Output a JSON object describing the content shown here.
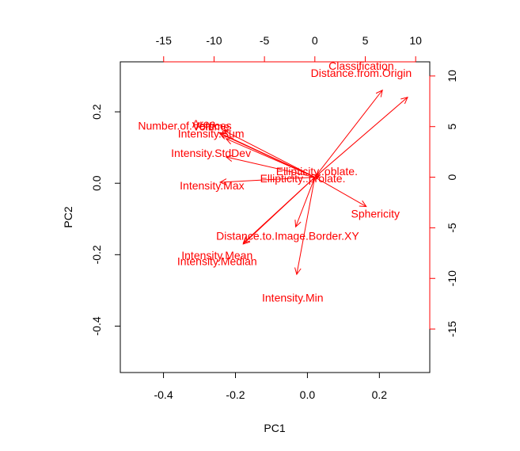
{
  "chart_data": {
    "type": "scatter",
    "subtype": "biplot",
    "title": "",
    "xlabel": "PC1",
    "ylabel": "PC2",
    "xlim": [
      -0.52,
      0.34
    ],
    "ylim": [
      -0.53,
      0.34
    ],
    "bottom_ticks": [
      "-0.4",
      "-0.2",
      "0.0",
      "0.2"
    ],
    "left_ticks": [
      "-0.4",
      "-0.2",
      "0.0",
      "0.2"
    ],
    "top_ticks": [
      "-15",
      "-10",
      "-5",
      "0",
      "5",
      "10"
    ],
    "right_ticks": [
      "-15",
      "-10",
      "-5",
      "0",
      "5",
      "10"
    ],
    "loadings_lim": [
      -19.3,
      11.4
    ],
    "grid": false,
    "colors": {
      "vectors": "#ff0000",
      "axes": "#000000",
      "secondary_axes": "#ff0000"
    },
    "variables": [
      {
        "name": "Classification",
        "x": 6.7,
        "y": 8.6
      },
      {
        "name": "Distance.from.Origin",
        "x": 9.2,
        "y": 7.9
      },
      {
        "name": "Number.of.Vertices",
        "x": -9.5,
        "y": 4.4
      },
      {
        "name": "Area",
        "x": -9.0,
        "y": 4.6
      },
      {
        "name": "Volume",
        "x": -9.4,
        "y": 4.3
      },
      {
        "name": "Intensity.Sum",
        "x": -8.8,
        "y": 3.8
      },
      {
        "name": "Intensity.StdDev",
        "x": -8.8,
        "y": 2.0
      },
      {
        "name": "Ellipticity..oblate.",
        "x": 0.5,
        "y": 0.2
      },
      {
        "name": "Ellipticity..prolate.",
        "x": 0.4,
        "y": 0.0
      },
      {
        "name": "Intensity.Max",
        "x": -9.4,
        "y": -0.5
      },
      {
        "name": "Sphericity",
        "x": 5.1,
        "y": -2.9
      },
      {
        "name": "Distance.to.Image.Border.XY",
        "x": -1.9,
        "y": -4.9
      },
      {
        "name": "Intensity.Mean",
        "x": -7.1,
        "y": -6.5
      },
      {
        "name": "Intensity.Median",
        "x": -7.1,
        "y": -6.6
      },
      {
        "name": "Intensity.Min",
        "x": -1.8,
        "y": -9.6
      }
    ],
    "labels": [
      {
        "text": "Classification",
        "x": 4.6,
        "y": 11.0
      },
      {
        "text": "Distance.from.Origin",
        "x": 4.6,
        "y": 10.3
      },
      {
        "text": "Number.of.Vertices",
        "x": -12.9,
        "y": 5.1
      },
      {
        "text": "Area",
        "x": -11.0,
        "y": 5.3
      },
      {
        "text": "Volume",
        "x": -10.3,
        "y": 5.0
      },
      {
        "text": "Intensity.Sum",
        "x": -10.3,
        "y": 4.3
      },
      {
        "text": "Intensity.StdDev",
        "x": -10.3,
        "y": 2.4
      },
      {
        "text": "Ellipticity..oblate.",
        "x": 0.2,
        "y": 0.6
      },
      {
        "text": "Ellipticity..prolate.",
        "x": -1.2,
        "y": -0.1
      },
      {
        "text": "Intensity.Max",
        "x": -10.2,
        "y": -0.8
      },
      {
        "text": "Sphericity",
        "x": 6.0,
        "y": -3.6
      },
      {
        "text": "Distance.to.Image.Border.XY",
        "x": -2.7,
        "y": -5.8
      },
      {
        "text": "Intensity.Mean",
        "x": -9.7,
        "y": -7.7
      },
      {
        "text": "Intensity.Median",
        "x": -9.7,
        "y": -8.3
      },
      {
        "text": "Intensity.Min",
        "x": -2.2,
        "y": -11.9
      }
    ]
  }
}
